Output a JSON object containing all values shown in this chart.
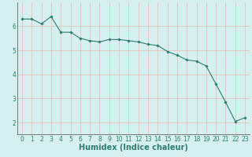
{
  "x": [
    0,
    1,
    2,
    3,
    4,
    5,
    6,
    7,
    8,
    9,
    10,
    11,
    12,
    13,
    14,
    15,
    16,
    17,
    18,
    19,
    20,
    21,
    22,
    23
  ],
  "y": [
    6.3,
    6.3,
    6.1,
    6.4,
    5.75,
    5.75,
    5.5,
    5.4,
    5.35,
    5.45,
    5.45,
    5.4,
    5.35,
    5.25,
    5.2,
    4.95,
    4.8,
    4.6,
    4.55,
    4.35,
    3.6,
    2.85,
    2.05,
    2.2
  ],
  "line_color": "#2e7d6e",
  "marker": "D",
  "marker_size": 1.8,
  "line_width": 0.8,
  "xlabel": "Humidex (Indice chaleur)",
  "xlim": [
    -0.5,
    23.5
  ],
  "ylim": [
    1.5,
    7.0
  ],
  "yticks": [
    2,
    3,
    4,
    5,
    6
  ],
  "xticks": [
    0,
    1,
    2,
    3,
    4,
    5,
    6,
    7,
    8,
    9,
    10,
    11,
    12,
    13,
    14,
    15,
    16,
    17,
    18,
    19,
    20,
    21,
    22,
    23
  ],
  "background_color": "#d6f0ef",
  "grid_color_x": "#e8b8b8",
  "grid_color_y": "#e8b8b8",
  "xlabel_fontsize": 7,
  "tick_fontsize": 5.5
}
